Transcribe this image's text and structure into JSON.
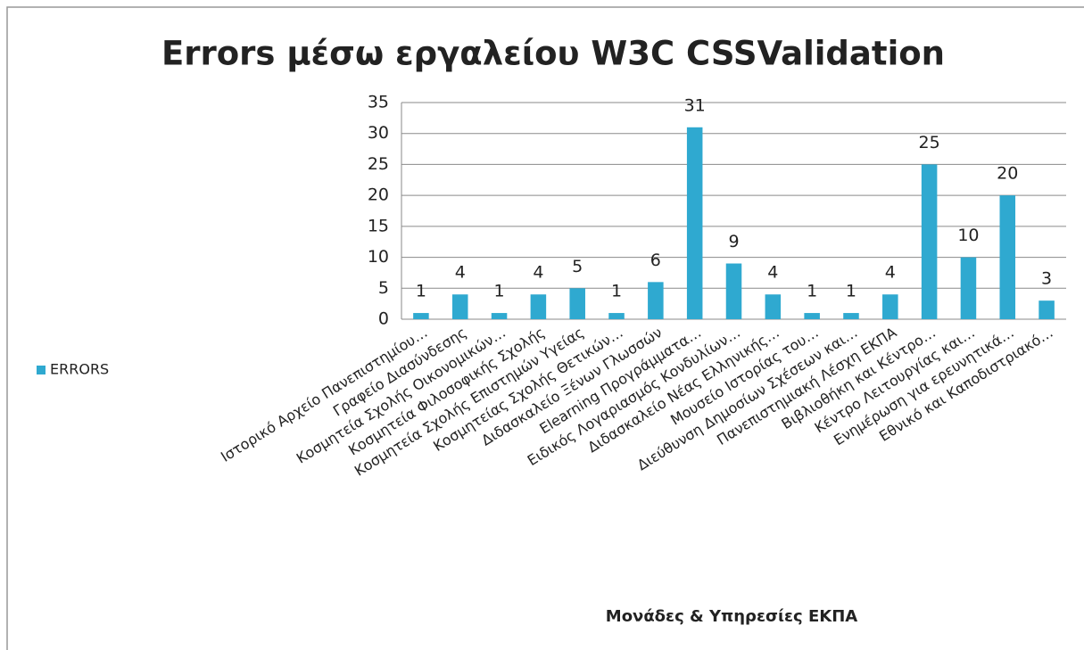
{
  "chart_data": {
    "type": "bar",
    "title": "Errors μέσω εργαλείου W3C CSSValidation",
    "x_label": "Μονάδες & Υπηρεσίες ΕΚΠΑ",
    "categories": [
      "Ιστορικό Αρχείο Πανεπιστημίου…",
      "Γραφείο Διασύνδεσης",
      "Κοσμητεία Σχολής Οικονομικών…",
      "Κοσμητεία Φιλοσοφικής Σχολής",
      "Κοσμητεία Σχολής Επιστημών Υγείας",
      "Κοσμητείας Σχολής Θετικών…",
      "Διδασκαλείο Ξένων Γλωσσών",
      "Elearning Προγράμματα…",
      "Ειδικός Λογαριασμός Κονδυλίων…",
      "Διδασκαλείο Νέας Ελληνικής…",
      "Μουσείο Ιστορίας του…",
      "Διεύθυνση Δημοσίων Σχέσεων και…",
      "Πανεπιστημιακή Λέσχη ΕΚΠΑ",
      "Βιβλιοθήκη και Κέντρο…",
      "Κέντρο Λειτουργίας και…",
      "Ενημέρωση για ερευνητικά…",
      "Εθνικό και Καποδιστριακό…"
    ],
    "series": [
      {
        "name": "ERRORS",
        "color": "#2fa9d0",
        "values": [
          1,
          4,
          1,
          4,
          5,
          1,
          6,
          31,
          9,
          4,
          1,
          1,
          4,
          25,
          10,
          20,
          3
        ]
      }
    ],
    "ylim": [
      0,
      35
    ],
    "yticks": [
      0,
      5,
      10,
      15,
      20,
      25,
      30,
      35
    ],
    "grid": true,
    "legend": "left"
  }
}
